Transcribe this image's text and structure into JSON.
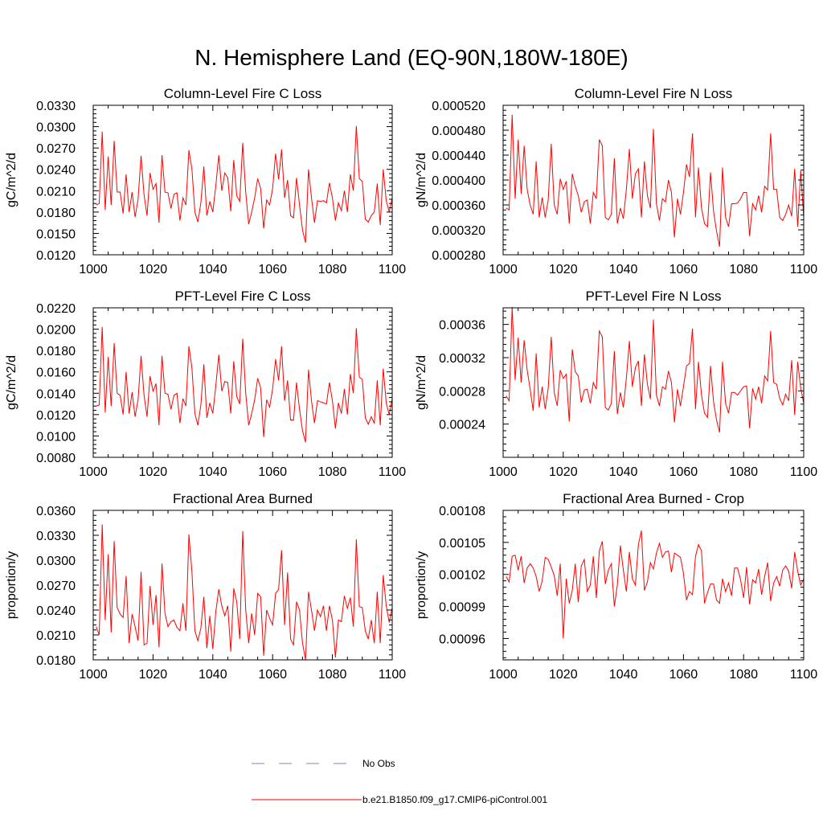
{
  "page_title": "N. Hemisphere Land (EQ-90N,180W-180E)",
  "legend": [
    {
      "label": "No Obs",
      "color": "#8080c0",
      "style": "dashed"
    },
    {
      "label": "b.e21.B1850.f09_g17.CMIP6-piControl.001",
      "color": "#ff0000",
      "style": "solid"
    }
  ],
  "chart_data": [
    {
      "type": "line",
      "title": "Column-Level Fire C Loss",
      "xlabel": "",
      "ylabel": "gC/m^2/d",
      "xlim": [
        1000,
        1100
      ],
      "ylim": [
        0.012,
        0.033
      ],
      "xticks": [
        1000,
        1020,
        1040,
        1060,
        1080,
        1100
      ],
      "yticks": [
        0.012,
        0.015,
        0.018,
        0.021,
        0.024,
        0.027,
        0.03,
        0.033
      ],
      "ytick_labels": [
        "0.0120",
        "0.0150",
        "0.0180",
        "0.0210",
        "0.0240",
        "0.0270",
        "0.0300",
        "0.0330"
      ],
      "x_start": 1001,
      "series": [
        {
          "name": "b.e21.B1850.f09_g17.CMIP6-piControl.001",
          "color": "#ff0000",
          "values": [
            0.019,
            0.0192,
            0.0293,
            0.0183,
            0.0258,
            0.019,
            0.028,
            0.0208,
            0.0208,
            0.0178,
            0.0233,
            0.018,
            0.0208,
            0.0173,
            0.0198,
            0.0259,
            0.0204,
            0.0175,
            0.0235,
            0.0212,
            0.022,
            0.0165,
            0.026,
            0.0208,
            0.0207,
            0.0185,
            0.0205,
            0.0207,
            0.0168,
            0.02,
            0.019,
            0.0267,
            0.0241,
            0.018,
            0.0166,
            0.0193,
            0.0244,
            0.0175,
            0.0195,
            0.018,
            0.0217,
            0.026,
            0.021,
            0.0235,
            0.0228,
            0.0181,
            0.0253,
            0.0203,
            0.0195,
            0.0277,
            0.0208,
            0.0163,
            0.018,
            0.02,
            0.0227,
            0.0213,
            0.0157,
            0.0197,
            0.019,
            0.0213,
            0.0262,
            0.0226,
            0.0268,
            0.02,
            0.0225,
            0.0175,
            0.0172,
            0.0228,
            0.019,
            0.0155,
            0.0137,
            0.024,
            0.02,
            0.0165,
            0.0196,
            0.0195,
            0.0196,
            0.0193,
            0.0221,
            0.02,
            0.0168,
            0.0193,
            0.0182,
            0.021,
            0.018,
            0.0233,
            0.021,
            0.0301,
            0.0227,
            0.0223,
            0.017,
            0.0166,
            0.0175,
            0.018,
            0.022,
            0.0162,
            0.024,
            0.0196,
            0.018,
            0.02
          ]
        }
      ]
    },
    {
      "type": "line",
      "title": "Column-Level Fire N Loss",
      "xlabel": "",
      "ylabel": "gN/m^2/d",
      "xlim": [
        1000,
        1100
      ],
      "ylim": [
        0.00028,
        0.00052
      ],
      "xticks": [
        1000,
        1020,
        1040,
        1060,
        1080,
        1100
      ],
      "yticks": [
        0.00028,
        0.00032,
        0.00036,
        0.0004,
        0.00044,
        0.00048,
        0.00052
      ],
      "ytick_labels": [
        "0.000280",
        "0.000320",
        "0.000360",
        "0.000400",
        "0.000440",
        "0.000480",
        "0.000520"
      ],
      "x_start": 1001,
      "series": [
        {
          "name": "b.e21.B1850.f09_g17.CMIP6-piControl.001",
          "color": "#ff0000",
          "values": [
            0.000355,
            0.000352,
            0.000505,
            0.00037,
            0.000465,
            0.000378,
            0.000455,
            0.000385,
            0.00036,
            0.000345,
            0.00043,
            0.00034,
            0.000372,
            0.00034,
            0.000368,
            0.000458,
            0.00036,
            0.000345,
            0.000402,
            0.000385,
            0.000398,
            0.00033,
            0.00041,
            0.00039,
            0.000375,
            0.000348,
            0.000365,
            0.000368,
            0.00033,
            0.00038,
            0.00037,
            0.000465,
            0.000455,
            0.00034,
            0.000336,
            0.000345,
            0.000435,
            0.00033,
            0.000355,
            0.000338,
            0.000385,
            0.00045,
            0.00037,
            0.00041,
            0.000418,
            0.00034,
            0.00043,
            0.000375,
            0.000355,
            0.000482,
            0.000362,
            0.000335,
            0.00037,
            0.000365,
            0.0004,
            0.00038,
            0.000308,
            0.00037,
            0.000345,
            0.00038,
            0.000425,
            0.000405,
            0.000475,
            0.00034,
            0.00042,
            0.000355,
            0.00033,
            0.000325,
            0.000412,
            0.00035,
            0.000318,
            0.000293,
            0.00042,
            0.00034,
            0.000325,
            0.000362,
            0.000362,
            0.000363,
            0.00037,
            0.00038,
            0.00038,
            0.00031,
            0.000362,
            0.000352,
            0.000375,
            0.000348,
            0.00039,
            0.000384,
            0.000475,
            0.000385,
            0.000385,
            0.00034,
            0.000335,
            0.000345,
            0.00036,
            0.000342,
            0.000418,
            0.000325,
            0.000415,
            0.00034
          ]
        }
      ]
    },
    {
      "type": "line",
      "title": "PFT-Level Fire C Loss",
      "xlabel": "",
      "ylabel": "gC/m^2/d",
      "xlim": [
        1000,
        1100
      ],
      "ylim": [
        0.008,
        0.022
      ],
      "xticks": [
        1000,
        1020,
        1040,
        1060,
        1080,
        1100
      ],
      "yticks": [
        0.008,
        0.01,
        0.012,
        0.014,
        0.016,
        0.018,
        0.02,
        0.022
      ],
      "ytick_labels": [
        "0.0080",
        "0.0100",
        "0.0120",
        "0.0140",
        "0.0160",
        "0.0180",
        "0.0200",
        "0.0220"
      ],
      "x_start": 1001,
      "series": [
        {
          "name": "b.e21.B1850.f09_g17.CMIP6-piControl.001",
          "color": "#ff0000",
          "values": [
            0.0128,
            0.0129,
            0.0202,
            0.0122,
            0.0174,
            0.0128,
            0.0187,
            0.014,
            0.0138,
            0.012,
            0.016,
            0.0121,
            0.0141,
            0.0118,
            0.0134,
            0.0175,
            0.0138,
            0.0118,
            0.0156,
            0.0142,
            0.0149,
            0.011,
            0.0175,
            0.014,
            0.0139,
            0.0125,
            0.0138,
            0.014,
            0.0112,
            0.0135,
            0.0128,
            0.0184,
            0.0164,
            0.0121,
            0.011,
            0.0129,
            0.0167,
            0.0117,
            0.0131,
            0.0121,
            0.0147,
            0.0176,
            0.0142,
            0.0151,
            0.015,
            0.0121,
            0.017,
            0.0137,
            0.013,
            0.0191,
            0.014,
            0.011,
            0.0121,
            0.0134,
            0.0154,
            0.0145,
            0.0099,
            0.0134,
            0.0127,
            0.0144,
            0.0172,
            0.0152,
            0.0184,
            0.0133,
            0.0152,
            0.0115,
            0.0115,
            0.015,
            0.0125,
            0.0105,
            0.0094,
            0.0162,
            0.0133,
            0.0112,
            0.0133,
            0.0132,
            0.0131,
            0.013,
            0.015,
            0.0133,
            0.0107,
            0.0131,
            0.0121,
            0.0144,
            0.012,
            0.0158,
            0.014,
            0.0201,
            0.0155,
            0.0153,
            0.0117,
            0.0111,
            0.0118,
            0.0112,
            0.0152,
            0.011,
            0.0163,
            0.0131,
            0.012,
            0.0135
          ]
        }
      ]
    },
    {
      "type": "line",
      "title": "PFT-Level Fire N Loss",
      "xlabel": "",
      "ylabel": "gN/m^2/d",
      "xlim": [
        1000,
        1100
      ],
      "ylim": [
        0.0002,
        0.00038
      ],
      "xticks": [
        1000,
        1020,
        1040,
        1060,
        1080,
        1100
      ],
      "yticks": [
        0.00024,
        0.00028,
        0.00032,
        0.00036
      ],
      "ytick_labels": [
        "0.00024",
        "0.00028",
        "0.00032",
        "0.00036"
      ],
      "x_start": 1001,
      "series": [
        {
          "name": "b.e21.B1850.f09_g17.CMIP6-piControl.001",
          "color": "#ff0000",
          "values": [
            0.000274,
            0.000268,
            0.000381,
            0.000293,
            0.000344,
            0.00029,
            0.000341,
            0.000305,
            0.000282,
            0.000256,
            0.000325,
            0.00026,
            0.000285,
            0.000258,
            0.000283,
            0.000345,
            0.000278,
            0.000262,
            0.000305,
            0.000295,
            0.0003,
            0.000243,
            0.00033,
            0.000303,
            0.000298,
            0.000266,
            0.000281,
            0.000282,
            0.000265,
            0.00029,
            0.000282,
            0.000352,
            0.000345,
            0.00026,
            0.000257,
            0.000265,
            0.000328,
            0.000252,
            0.000278,
            0.00026,
            0.000295,
            0.00034,
            0.000285,
            0.000308,
            0.000316,
            0.000262,
            0.000324,
            0.000288,
            0.00027,
            0.000366,
            0.000275,
            0.000262,
            0.000285,
            0.000282,
            0.000304,
            0.00029,
            0.000242,
            0.000282,
            0.000262,
            0.000285,
            0.00031,
            0.000313,
            0.000355,
            0.000258,
            0.000315,
            0.000275,
            0.000253,
            0.000248,
            0.00031,
            0.000267,
            0.000245,
            0.00023,
            0.000315,
            0.000265,
            0.000253,
            0.000278,
            0.000278,
            0.000275,
            0.00028,
            0.000285,
            0.000286,
            0.000235,
            0.000283,
            0.00027,
            0.000285,
            0.000265,
            0.000298,
            0.000292,
            0.000352,
            0.00029,
            0.000288,
            0.000271,
            0.000263,
            0.000276,
            0.000268,
            0.000317,
            0.000251,
            0.000315,
            0.000283,
            0.000265
          ]
        }
      ]
    },
    {
      "type": "line",
      "title": "Fractional Area Burned",
      "xlabel": "",
      "ylabel": "proportion/y",
      "xlim": [
        1000,
        1100
      ],
      "ylim": [
        0.018,
        0.036
      ],
      "xticks": [
        1000,
        1020,
        1040,
        1060,
        1080,
        1100
      ],
      "yticks": [
        0.018,
        0.021,
        0.024,
        0.027,
        0.03,
        0.033,
        0.036
      ],
      "ytick_labels": [
        "0.0180",
        "0.0210",
        "0.0240",
        "0.0270",
        "0.0300",
        "0.0330",
        "0.0360"
      ],
      "x_start": 1001,
      "series": [
        {
          "name": "b.e21.B1850.f09_g17.CMIP6-piControl.001",
          "color": "#ff0000",
          "values": [
            0.022,
            0.021,
            0.0343,
            0.0228,
            0.0307,
            0.0213,
            0.0323,
            0.0243,
            0.0235,
            0.0231,
            0.0281,
            0.02,
            0.0235,
            0.022,
            0.0203,
            0.0286,
            0.0198,
            0.02,
            0.0269,
            0.0222,
            0.0258,
            0.0195,
            0.0296,
            0.0236,
            0.022,
            0.0226,
            0.0228,
            0.0219,
            0.0215,
            0.0248,
            0.0215,
            0.0331,
            0.0287,
            0.0215,
            0.0203,
            0.0218,
            0.0256,
            0.0194,
            0.0233,
            0.0193,
            0.0238,
            0.0265,
            0.0245,
            0.0233,
            0.0245,
            0.019,
            0.0266,
            0.025,
            0.0205,
            0.0335,
            0.024,
            0.02,
            0.0236,
            0.021,
            0.026,
            0.0256,
            0.0185,
            0.024,
            0.023,
            0.0222,
            0.026,
            0.0265,
            0.0312,
            0.0222,
            0.0285,
            0.0205,
            0.0198,
            0.025,
            0.024,
            0.02,
            0.018,
            0.0262,
            0.024,
            0.0215,
            0.024,
            0.0232,
            0.0245,
            0.0215,
            0.0245,
            0.0228,
            0.0183,
            0.0228,
            0.0226,
            0.0257,
            0.0242,
            0.0255,
            0.022,
            0.0325,
            0.0244,
            0.0243,
            0.0215,
            0.0205,
            0.0228,
            0.02,
            0.0262,
            0.02,
            0.0282,
            0.0245,
            0.0225,
            0.0243
          ]
        }
      ]
    },
    {
      "type": "line",
      "title": "Fractional Area Burned - Crop",
      "xlabel": "",
      "ylabel": "proportion/y",
      "xlim": [
        1000,
        1100
      ],
      "ylim": [
        0.00094,
        0.00108
      ],
      "xticks": [
        1000,
        1020,
        1040,
        1060,
        1080,
        1100
      ],
      "yticks": [
        0.00096,
        0.00099,
        0.00102,
        0.00105,
        0.00108
      ],
      "ytick_labels": [
        "0.00096",
        "0.00099",
        "0.00102",
        "0.00105",
        "0.00108"
      ],
      "x_start": 1001,
      "series": [
        {
          "name": "b.e21.B1850.f09_g17.CMIP6-piControl.001",
          "color": "#ff0000",
          "values": [
            0.001018,
            0.001013,
            0.001037,
            0.001038,
            0.001024,
            0.001037,
            0.001012,
            0.001026,
            0.00103,
            0.001026,
            0.001018,
            0.001004,
            0.001014,
            0.001036,
            0.001034,
            0.001027,
            0.001019,
            0.001,
            0.00103,
            0.00096,
            0.001016,
            0.000993,
            0.001005,
            0.00103,
            0.000994,
            0.001028,
            0.001034,
            0.001004,
            0.00101,
            0.001037,
            0.000998,
            0.001042,
            0.001051,
            0.001011,
            0.001024,
            0.00103,
            0.00099,
            0.00101,
            0.001047,
            0.001024,
            0.001004,
            0.001041,
            0.001016,
            0.00101,
            0.001048,
            0.001061,
            0.001005,
            0.001013,
            0.001031,
            0.001025,
            0.00104,
            0.001049,
            0.001036,
            0.001041,
            0.001042,
            0.001022,
            0.00104,
            0.001038,
            0.001036,
            0.001021,
            0.000996,
            0.001004,
            0.001001,
            0.001037,
            0.001048,
            0.001042,
            0.000993,
            0.001003,
            0.001011,
            0.001011,
            0.000996,
            0.000993,
            0.001016,
            0.001004,
            0.001012,
            0.001,
            0.001026,
            0.001026,
            0.001015,
            0.000998,
            0.001027,
            0.000992,
            0.001015,
            0.001012,
            0.001025,
            0.001001,
            0.001018,
            0.001031,
            0.000995,
            0.001012,
            0.001018,
            0.001009,
            0.001024,
            0.001028,
            0.001023,
            0.001007,
            0.001041,
            0.001023,
            0.00101,
            0.001016
          ]
        }
      ]
    }
  ]
}
